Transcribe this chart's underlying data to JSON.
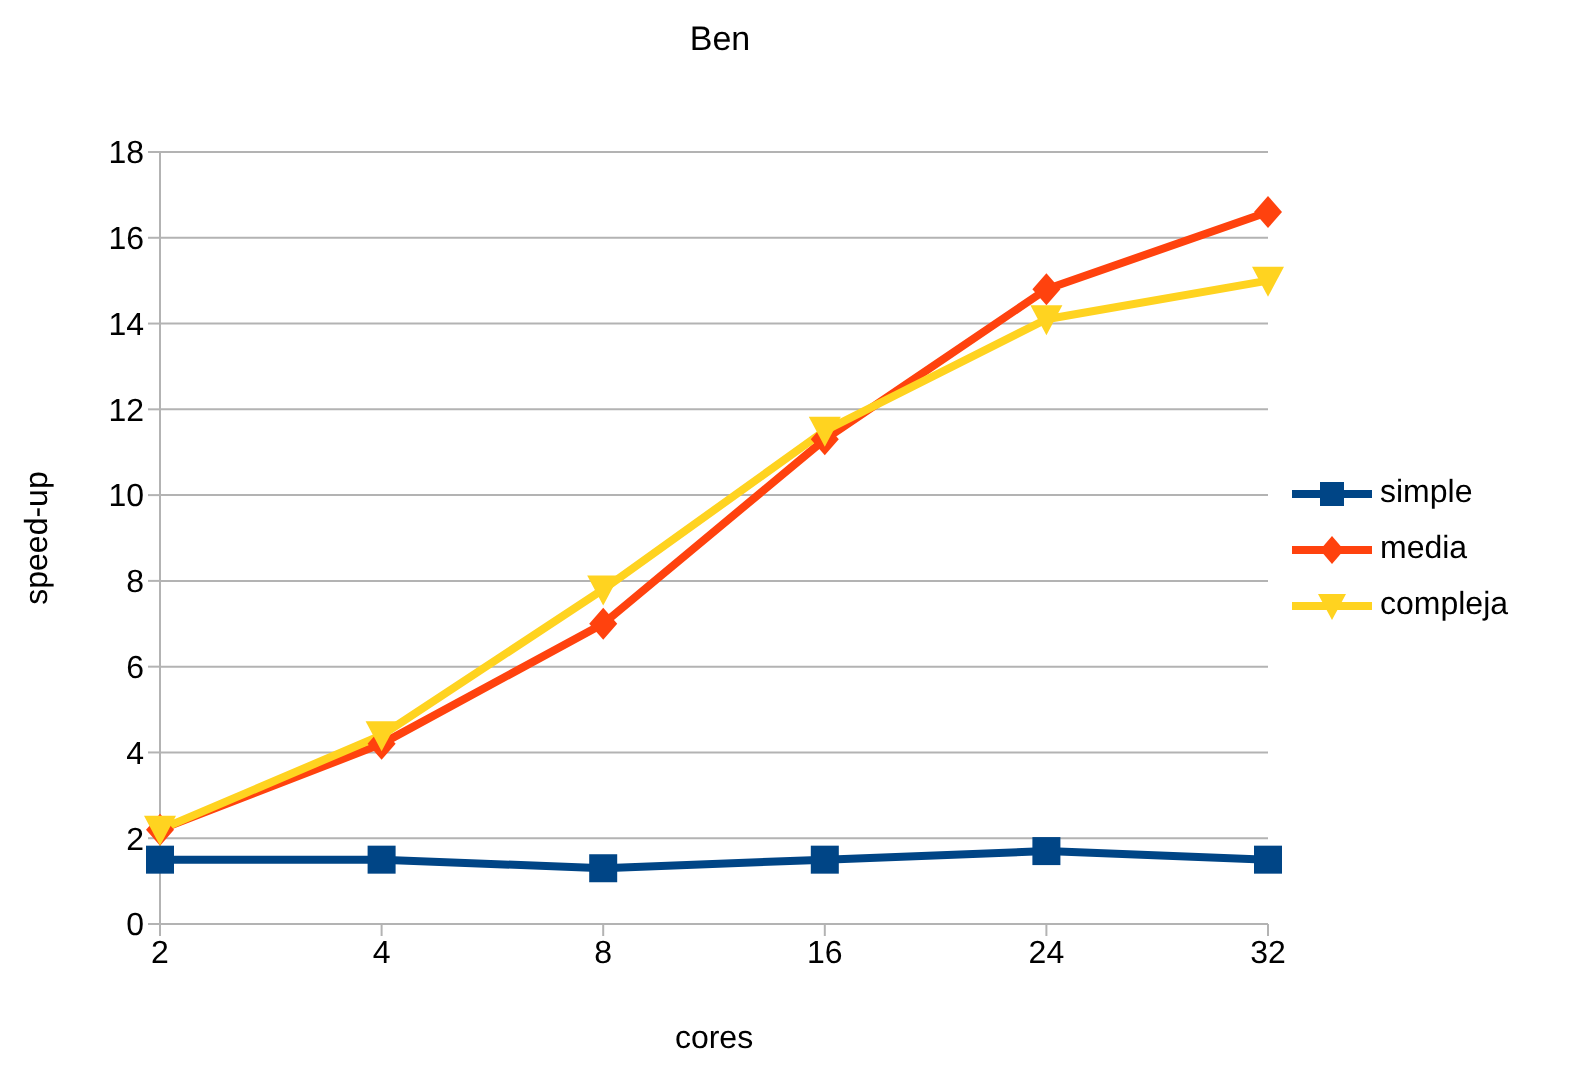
{
  "chart_data": {
    "type": "line",
    "title": "Ben",
    "xlabel": "cores",
    "ylabel": "speed-up",
    "categories": [
      "2",
      "4",
      "8",
      "16",
      "24",
      "32"
    ],
    "series": [
      {
        "name": "simple",
        "color": "#004586",
        "marker": "square",
        "values": [
          1.5,
          1.5,
          1.3,
          1.5,
          1.7,
          1.5
        ]
      },
      {
        "name": "media",
        "color": "#ff420e",
        "marker": "diamond",
        "values": [
          2.2,
          4.2,
          7.0,
          11.3,
          14.8,
          16.6
        ]
      },
      {
        "name": "compleja",
        "color": "#ffd320",
        "marker": "triangle",
        "values": [
          2.2,
          4.4,
          7.8,
          11.5,
          14.1,
          15.0
        ]
      }
    ],
    "ylim": [
      0,
      18
    ],
    "yticks": [
      0,
      2,
      4,
      6,
      8,
      10,
      12,
      14,
      16,
      18
    ],
    "grid": "y",
    "legend": "right",
    "line_style": "solid"
  }
}
